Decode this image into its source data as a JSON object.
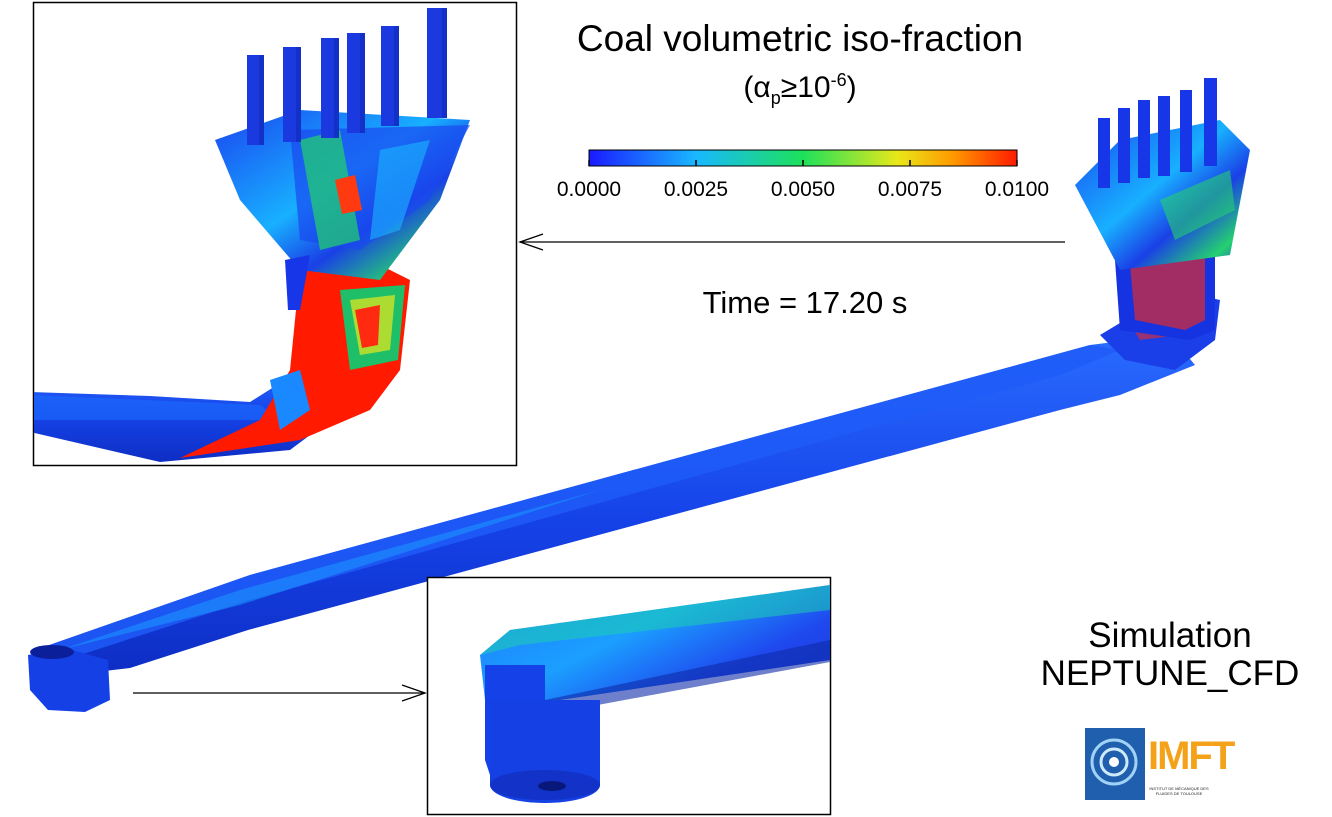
{
  "title": "Coal volumetric iso-fraction",
  "subtitle": {
    "prefix": "(",
    "alpha": "α",
    "sub": "p",
    "rel": "≥10",
    "sup": "-6",
    "suffix": ")"
  },
  "colorbar": {
    "ticks": [
      "0.0000",
      "0.0025",
      "0.0050",
      "0.0075",
      "0.0100"
    ],
    "colors": [
      "#1a3cff",
      "#19b8ff",
      "#1de15a",
      "#e8e81a",
      "#ff9a00",
      "#ff1a00"
    ]
  },
  "time_label": "Time = 17.20 s",
  "simulation": {
    "line1": "Simulation",
    "line2": "NEPTUNE_CFD"
  },
  "logo": {
    "text": "IMFT",
    "caption": "INSTITUT DE MÉCANIQUE DES FLUIDES DE TOULOUSE"
  },
  "palette": {
    "low": "#1530e8",
    "mid": "#19c8ff",
    "green": "#22d36a",
    "high": "#ff1500",
    "frame": "#000000"
  }
}
